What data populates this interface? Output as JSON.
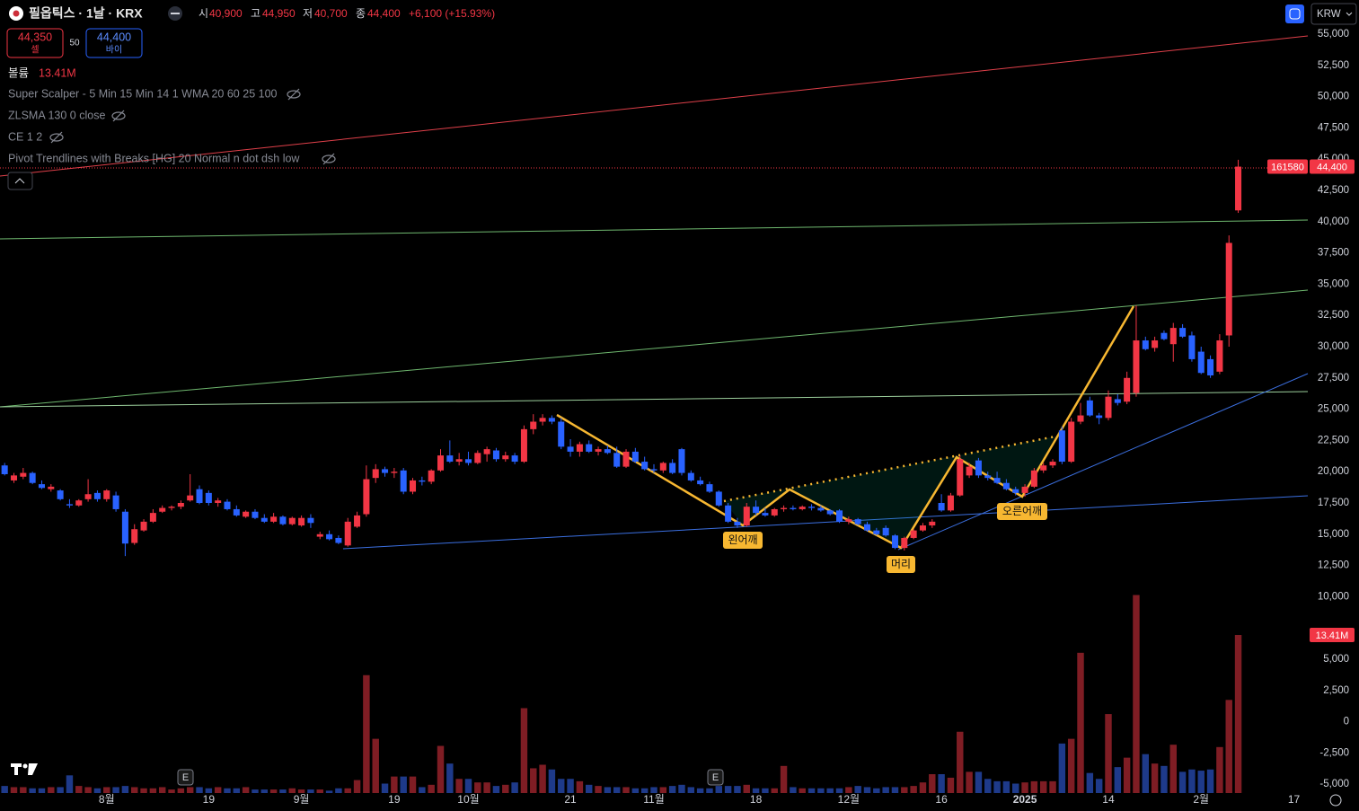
{
  "header": {
    "symbol": "필옵틱스 · 1날 · KRX",
    "open_label": "시",
    "open": "40,900",
    "high_label": "고",
    "high": "44,950",
    "low_label": "저",
    "low": "40,700",
    "close_label": "종",
    "close": "44,400",
    "change": "+6,100 (+15.93%)",
    "currency": "KRW"
  },
  "trade_buttons": {
    "sell_price": "44,350",
    "sell": "셀",
    "spread": "50",
    "buy_price": "44,400",
    "buy": "바이"
  },
  "legend": {
    "volume_label": "볼륨",
    "volume_value": "13.41M",
    "indicators": [
      "Super Scalper - 5 Min 15 Min 14 1 WMA 20 60 25 100",
      "ZLSMA 130 0 close",
      "CE 1 2",
      "Pivot Trendlines with Breaks [HG] 20 Normal n dot dsh low"
    ]
  },
  "annotations": [
    "왼어깨",
    "머리",
    "오른어깨"
  ],
  "events": [
    "E",
    "E"
  ],
  "chart_data": {
    "type": "candlestick",
    "categories": [
      null,
      null,
      null,
      null,
      null,
      null,
      null,
      null,
      null,
      null,
      null,
      "8월",
      null,
      null,
      null,
      null,
      null,
      null,
      null,
      null,
      null,
      null,
      "19",
      null,
      null,
      null,
      null,
      null,
      null,
      null,
      null,
      null,
      "9월",
      null,
      null,
      null,
      null,
      null,
      null,
      null,
      null,
      null,
      "19",
      null,
      null,
      null,
      null,
      null,
      null,
      null,
      "10월",
      null,
      null,
      null,
      null,
      null,
      null,
      null,
      null,
      null,
      null,
      "21",
      null,
      null,
      null,
      null,
      null,
      null,
      null,
      null,
      "11월",
      null,
      null,
      null,
      null,
      null,
      null,
      null,
      null,
      null,
      null,
      "18",
      null,
      null,
      null,
      null,
      null,
      null,
      null,
      null,
      null,
      "12월",
      null,
      null,
      null,
      null,
      null,
      null,
      null,
      null,
      null,
      "16",
      null,
      null,
      null,
      null,
      null,
      null,
      null,
      null,
      "2025",
      null,
      null,
      null,
      null,
      null,
      null,
      null,
      null,
      "14",
      null,
      null,
      null,
      null,
      null,
      null,
      null,
      null,
      null,
      "2월",
      null,
      null,
      null,
      null,
      null,
      null,
      null,
      null,
      null,
      "17",
      null
    ],
    "ohlc": [
      [
        20500,
        20700,
        19700,
        19800
      ],
      [
        19300,
        19900,
        19100,
        19700
      ],
      [
        19600,
        20300,
        19400,
        19900
      ],
      [
        19900,
        20000,
        19000,
        19100
      ],
      [
        19000,
        19300,
        18600,
        18700
      ],
      [
        18600,
        19000,
        18400,
        18800
      ],
      [
        18500,
        18600,
        17700,
        17800
      ],
      [
        17400,
        17800,
        17100,
        17300
      ],
      [
        17300,
        17800,
        17200,
        17700
      ],
      [
        17800,
        19400,
        17600,
        18200
      ],
      [
        18300,
        18500,
        17600,
        17800
      ],
      [
        17800,
        18600,
        17600,
        18500
      ],
      [
        18100,
        18400,
        16800,
        17000
      ],
      [
        16800,
        17000,
        13250,
        14250
      ],
      [
        14300,
        15800,
        14150,
        15400
      ],
      [
        15300,
        16200,
        15200,
        16000
      ],
      [
        16000,
        17000,
        15900,
        16700
      ],
      [
        16800,
        17300,
        16700,
        17100
      ],
      [
        17100,
        17300,
        16900,
        17200
      ],
      [
        17200,
        17700,
        17000,
        17500
      ],
      [
        17700,
        19800,
        17600,
        18100
      ],
      [
        18600,
        18900,
        17400,
        17500
      ],
      [
        18300,
        18500,
        17300,
        17500
      ],
      [
        17500,
        17900,
        17200,
        17700
      ],
      [
        17600,
        17800,
        16900,
        17000
      ],
      [
        17000,
        17300,
        16400,
        16500
      ],
      [
        16400,
        16900,
        16300,
        16800
      ],
      [
        16800,
        17000,
        16200,
        16300
      ],
      [
        16300,
        16600,
        15900,
        16000
      ],
      [
        16000,
        16700,
        15900,
        16400
      ],
      [
        16400,
        16500,
        15700,
        15800
      ],
      [
        15800,
        16400,
        15700,
        16300
      ],
      [
        15700,
        16500,
        15600,
        16300
      ],
      [
        16300,
        16600,
        15500,
        15900
      ],
      [
        14800,
        15200,
        14600,
        15000
      ],
      [
        15000,
        15300,
        14500,
        14600
      ],
      [
        14700,
        14900,
        14200,
        14300
      ],
      [
        14100,
        16300,
        14000,
        16000
      ],
      [
        15600,
        16800,
        15500,
        16500
      ],
      [
        16600,
        20500,
        16400,
        19400
      ],
      [
        19500,
        20600,
        19100,
        20200
      ],
      [
        20200,
        20400,
        19600,
        19900
      ],
      [
        19900,
        20300,
        19500,
        20000
      ],
      [
        20100,
        20300,
        18200,
        18400
      ],
      [
        18400,
        19500,
        18200,
        19300
      ],
      [
        19300,
        19600,
        18900,
        19200
      ],
      [
        19200,
        20200,
        19000,
        20100
      ],
      [
        20100,
        21800,
        20000,
        21300
      ],
      [
        21300,
        22500,
        20700,
        20800
      ],
      [
        20800,
        21500,
        20500,
        21000
      ],
      [
        21000,
        21600,
        20500,
        20700
      ],
      [
        20700,
        21700,
        20600,
        21500
      ],
      [
        21400,
        22000,
        20800,
        21800
      ],
      [
        21700,
        21900,
        20800,
        21000
      ],
      [
        21000,
        21600,
        20800,
        21300
      ],
      [
        21300,
        21500,
        20600,
        20800
      ],
      [
        20800,
        23700,
        20700,
        23400
      ],
      [
        23400,
        24600,
        23000,
        24000
      ],
      [
        24000,
        24600,
        23700,
        24300
      ],
      [
        24300,
        24500,
        23800,
        24000
      ],
      [
        24000,
        24300,
        21800,
        22000
      ],
      [
        22000,
        22600,
        21200,
        21600
      ],
      [
        21600,
        22400,
        21200,
        22200
      ],
      [
        22200,
        22500,
        21500,
        21600
      ],
      [
        21600,
        22000,
        21300,
        21800
      ],
      [
        21800,
        22100,
        21400,
        21500
      ],
      [
        21500,
        22000,
        20300,
        20400
      ],
      [
        20400,
        21800,
        20300,
        21600
      ],
      [
        21600,
        21900,
        20700,
        20800
      ],
      [
        20800,
        21200,
        20100,
        20200
      ],
      [
        20200,
        20600,
        19900,
        20100
      ],
      [
        20100,
        20800,
        19900,
        20700
      ],
      [
        20700,
        21000,
        19800,
        19900
      ],
      [
        21800,
        21900,
        19700,
        19900
      ],
      [
        19900,
        20100,
        19200,
        19300
      ],
      [
        19300,
        19600,
        18900,
        19000
      ],
      [
        19000,
        19200,
        18300,
        18400
      ],
      [
        18400,
        18500,
        17200,
        17300
      ],
      [
        17300,
        17500,
        15900,
        16000
      ],
      [
        16000,
        16300,
        15500,
        15700
      ],
      [
        15700,
        17500,
        15600,
        17200
      ],
      [
        17200,
        17700,
        16500,
        16700
      ],
      [
        16700,
        17100,
        16400,
        16500
      ],
      [
        16500,
        17100,
        16400,
        17000
      ],
      [
        17000,
        17300,
        16800,
        17100
      ],
      [
        17100,
        17300,
        16900,
        17000
      ],
      [
        17000,
        17300,
        16900,
        17200
      ],
      [
        17200,
        17400,
        16900,
        17100
      ],
      [
        17100,
        17300,
        16800,
        16900
      ],
      [
        16900,
        17000,
        16500,
        16600
      ],
      [
        16900,
        17000,
        15900,
        16000
      ],
      [
        16000,
        16400,
        15800,
        16200
      ],
      [
        16200,
        16300,
        15700,
        15800
      ],
      [
        15800,
        16000,
        15200,
        15300
      ],
      [
        15300,
        15500,
        14900,
        15000
      ],
      [
        15500,
        15700,
        14800,
        14900
      ],
      [
        14900,
        15000,
        13800,
        13900
      ],
      [
        13900,
        14800,
        13700,
        14700
      ],
      [
        14700,
        15400,
        14600,
        15300
      ],
      [
        15300,
        15900,
        15200,
        15700
      ],
      [
        15700,
        16200,
        15500,
        16000
      ],
      [
        17500,
        18200,
        16800,
        16900
      ],
      [
        16900,
        18300,
        16800,
        18100
      ],
      [
        18100,
        21300,
        18000,
        21000
      ],
      [
        19700,
        20700,
        19500,
        20400
      ],
      [
        20900,
        21100,
        19500,
        19700
      ],
      [
        19700,
        20000,
        19300,
        19500
      ],
      [
        19500,
        20000,
        19000,
        19100
      ],
      [
        19100,
        19400,
        18500,
        18600
      ],
      [
        18600,
        18800,
        18100,
        18300
      ],
      [
        18300,
        19000,
        18000,
        18800
      ],
      [
        18800,
        20300,
        18700,
        20100
      ],
      [
        20100,
        20700,
        19900,
        20500
      ],
      [
        20500,
        21000,
        20300,
        20800
      ],
      [
        23300,
        23600,
        20600,
        20800
      ],
      [
        20800,
        24300,
        20700,
        24000
      ],
      [
        24000,
        25500,
        23800,
        24500
      ],
      [
        25700,
        26000,
        24400,
        24500
      ],
      [
        24500,
        24700,
        23800,
        24300
      ],
      [
        24300,
        26500,
        24100,
        26000
      ],
      [
        25800,
        26200,
        25300,
        25500
      ],
      [
        25600,
        28000,
        25400,
        27500
      ],
      [
        26300,
        33300,
        26000,
        30500
      ],
      [
        30500,
        30800,
        29700,
        29800
      ],
      [
        29900,
        30800,
        29600,
        30500
      ],
      [
        31100,
        31300,
        30500,
        30600
      ],
      [
        30200,
        31900,
        28800,
        31500
      ],
      [
        31500,
        31800,
        30700,
        30800
      ],
      [
        30900,
        31200,
        28800,
        29000
      ],
      [
        29600,
        30000,
        27800,
        27900
      ],
      [
        29000,
        29300,
        27500,
        27700
      ],
      [
        28000,
        31000,
        27800,
        30500
      ],
      [
        30900,
        38900,
        30000,
        38300
      ],
      [
        40900,
        44950,
        40700,
        44400
      ],
      null,
      null,
      null,
      null,
      null,
      null,
      null
    ],
    "volumes": [
      0.6,
      0.5,
      0.5,
      0.4,
      0.4,
      0.5,
      0.5,
      1.5,
      0.6,
      0.5,
      0.4,
      0.5,
      0.5,
      0.6,
      0.5,
      0.4,
      0.4,
      0.5,
      0.3,
      0.4,
      0.5,
      0.5,
      0.4,
      0.5,
      0.4,
      0.4,
      0.5,
      0.3,
      0.3,
      0.3,
      0.3,
      0.4,
      0.3,
      0.3,
      0.3,
      0.2,
      0.4,
      0.4,
      1.1,
      10.0,
      4.6,
      0.8,
      1.4,
      1.4,
      1.4,
      0.5,
      0.7,
      4.0,
      2.5,
      1.2,
      1.2,
      0.9,
      0.9,
      0.6,
      0.7,
      0.9,
      7.2,
      2.1,
      2.4,
      2.0,
      1.2,
      1.2,
      1.0,
      0.7,
      0.6,
      0.5,
      0.5,
      0.5,
      0.4,
      0.4,
      0.5,
      0.5,
      0.6,
      0.7,
      0.5,
      0.4,
      0.4,
      0.6,
      0.6,
      0.6,
      0.7,
      0.4,
      0.4,
      0.4,
      2.3,
      0.5,
      0.4,
      0.4,
      0.4,
      0.4,
      0.4,
      0.5,
      0.6,
      0.5,
      0.4,
      0.5,
      0.5,
      0.5,
      0.6,
      0.9,
      1.6,
      1.6,
      1.3,
      5.2,
      1.8,
      1.8,
      1.2,
      1.0,
      1.0,
      0.8,
      0.9,
      1.0,
      1.0,
      1.0,
      4.2,
      4.6,
      11.9,
      1.7,
      1.2,
      6.7,
      2.2,
      3.0,
      16.8,
      3.3,
      2.5,
      2.3,
      4.1,
      1.8,
      2.0,
      1.9,
      2.0,
      3.9,
      7.9,
      13.41,
      null,
      null,
      null,
      null,
      null,
      null,
      null
    ],
    "up_color": "#f23645",
    "down_color": "#2962ff",
    "up_volume_color": "#7f1d24",
    "down_volume_color": "#1e3a8a",
    "ylim": [
      -5705,
      57730
    ],
    "yticks": [
      {
        "value": 55000,
        "label": "55,000"
      },
      {
        "value": 52500,
        "label": "52,500"
      },
      {
        "value": 50000,
        "label": "50,000"
      },
      {
        "value": 47500,
        "label": "47,500"
      },
      {
        "value": 45000,
        "label": "45,000"
      },
      {
        "value": 42500,
        "label": "42,500"
      },
      {
        "value": 40000,
        "label": "40,000"
      },
      {
        "value": 37500,
        "label": "37,500"
      },
      {
        "value": 35000,
        "label": "35,000"
      },
      {
        "value": 32500,
        "label": "32,500"
      },
      {
        "value": 30000,
        "label": "30,000"
      },
      {
        "value": 27500,
        "label": "27,500"
      },
      {
        "value": 25000,
        "label": "25,000"
      },
      {
        "value": 22500,
        "label": "22,500"
      },
      {
        "value": 20000,
        "label": "20,000"
      },
      {
        "value": 17500,
        "label": "17,500"
      },
      {
        "value": 15000,
        "label": "15,000"
      },
      {
        "value": 12500,
        "label": "12,500"
      },
      {
        "value": 10000,
        "label": "10,000"
      },
      {
        "value": 5000,
        "label": "5,000"
      },
      {
        "value": 2500,
        "label": "2,500"
      },
      0,
      {
        "value": -2500,
        "label": "-2,500"
      },
      {
        "value": -5000,
        "label": "-5,000"
      }
    ],
    "vlim": [
      0,
      67.28
    ],
    "last_price_label": "44,400",
    "countdown_label": "161580",
    "last_volume_label": "13.41M",
    "grid": false
  }
}
